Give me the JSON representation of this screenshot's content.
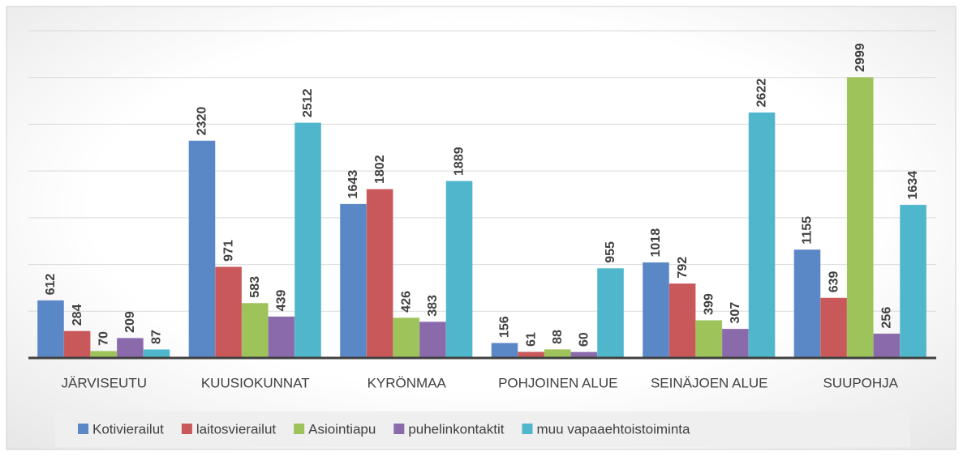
{
  "chart_data": {
    "type": "bar",
    "categories": [
      "JÄRVISEUTU",
      "KUUSIOKUNNAT",
      "KYRÖNMAA",
      "POHJOINEN ALUE",
      "SEINÄJOEN ALUE",
      "SUUPOHJA"
    ],
    "series": [
      {
        "name": "Kotivierailut",
        "color": "#5a87c6",
        "values": [
          612,
          2320,
          1643,
          156,
          1018,
          1155
        ]
      },
      {
        "name": "laitosvierailut",
        "color": "#c9585a",
        "values": [
          284,
          971,
          1802,
          61,
          792,
          639
        ]
      },
      {
        "name": "Asiointiapu",
        "color": "#9dc35a",
        "values": [
          70,
          583,
          426,
          88,
          399,
          2999
        ]
      },
      {
        "name": "puhelinkontaktit",
        "color": "#8a6aab",
        "values": [
          209,
          439,
          383,
          60,
          307,
          256
        ]
      },
      {
        "name": "muu vapaaehtoistoiminta",
        "color": "#4fb6cc",
        "values": [
          87,
          2512,
          1889,
          955,
          2622,
          1634
        ]
      }
    ],
    "ylim": [
      0,
      3500
    ],
    "yticks": [
      0,
      500,
      1000,
      1500,
      2000,
      2500,
      3000,
      3500
    ],
    "grid": true,
    "legend": "bottom"
  }
}
